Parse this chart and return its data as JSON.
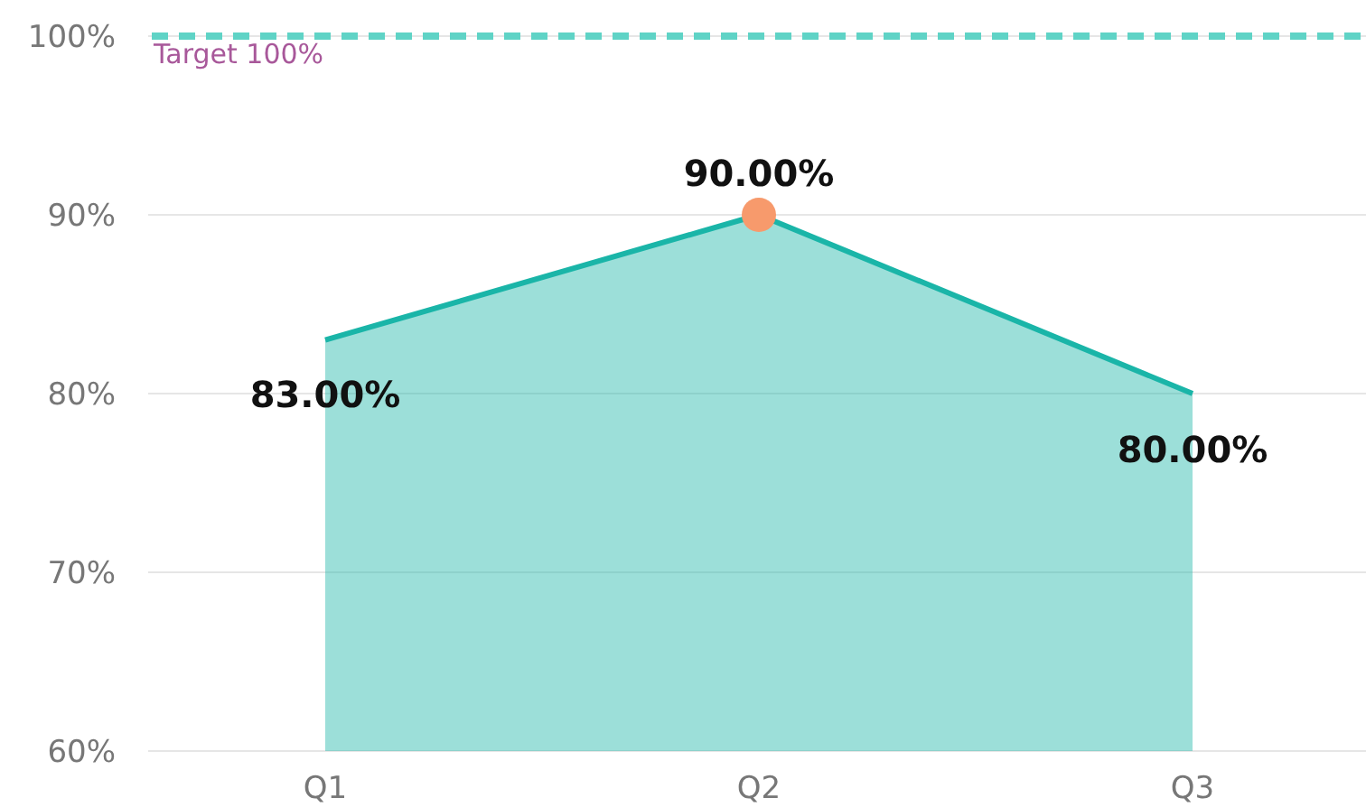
{
  "chart_data": {
    "type": "area",
    "categories": [
      "Q1",
      "Q2",
      "Q3"
    ],
    "series": [
      {
        "color": "#1ab5a8",
        "values": [
          83,
          90,
          80
        ],
        "value_labels": [
          "83.00%",
          "90.00%",
          "80.00%"
        ]
      },
      {
        "type": "scatter",
        "color": "#f79a6c",
        "marker": "circle",
        "x": [
          "Q2"
        ],
        "values": [
          90
        ]
      }
    ],
    "ylim": [
      60,
      100
    ],
    "yticks": [
      {
        "value": 60,
        "label": "60%"
      },
      {
        "value": 70,
        "label": "70%"
      },
      {
        "value": 80,
        "label": "80%"
      },
      {
        "value": 90,
        "label": "90%"
      },
      {
        "value": 100,
        "label": "100%"
      }
    ],
    "grid": "y",
    "ref_lines": [
      {
        "axis": "y",
        "value": 100,
        "label": "Target 100%",
        "color": "#5fd3c6",
        "line_style": "dashed"
      }
    ]
  }
}
